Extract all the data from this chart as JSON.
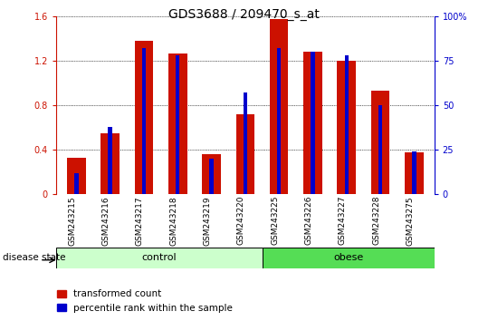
{
  "title": "GDS3688 / 209470_s_at",
  "samples": [
    "GSM243215",
    "GSM243216",
    "GSM243217",
    "GSM243218",
    "GSM243219",
    "GSM243220",
    "GSM243225",
    "GSM243226",
    "GSM243227",
    "GSM243228",
    "GSM243275"
  ],
  "transformed_count": [
    0.33,
    0.55,
    1.38,
    1.26,
    0.36,
    0.72,
    1.57,
    1.28,
    1.2,
    0.93,
    0.38
  ],
  "percentile_rank_pct": [
    12,
    38,
    82,
    78,
    20,
    57,
    82,
    80,
    78,
    50,
    24
  ],
  "n_control": 6,
  "n_obese": 5,
  "control_color": "#ccffcc",
  "obese_color": "#55dd55",
  "bar_color_red": "#cc1100",
  "bar_color_blue": "#0000cc",
  "ylim_left": [
    0,
    1.6
  ],
  "ylim_right": [
    0,
    100
  ],
  "yticks_left": [
    0,
    0.4,
    0.8,
    1.2,
    1.6
  ],
  "yticks_right": [
    0,
    25,
    50,
    75,
    100
  ],
  "ytick_labels_left": [
    "0",
    "0.4",
    "0.8",
    "1.2",
    "1.6"
  ],
  "ytick_labels_right": [
    "0",
    "25",
    "50",
    "75",
    "100%"
  ],
  "tick_area_color": "#cccccc",
  "red_bar_width": 0.55,
  "blue_bar_width": 0.12,
  "legend_label_red": "transformed count",
  "legend_label_blue": "percentile rank within the sample",
  "disease_state_label": "disease state",
  "control_label": "control",
  "obese_label": "obese"
}
